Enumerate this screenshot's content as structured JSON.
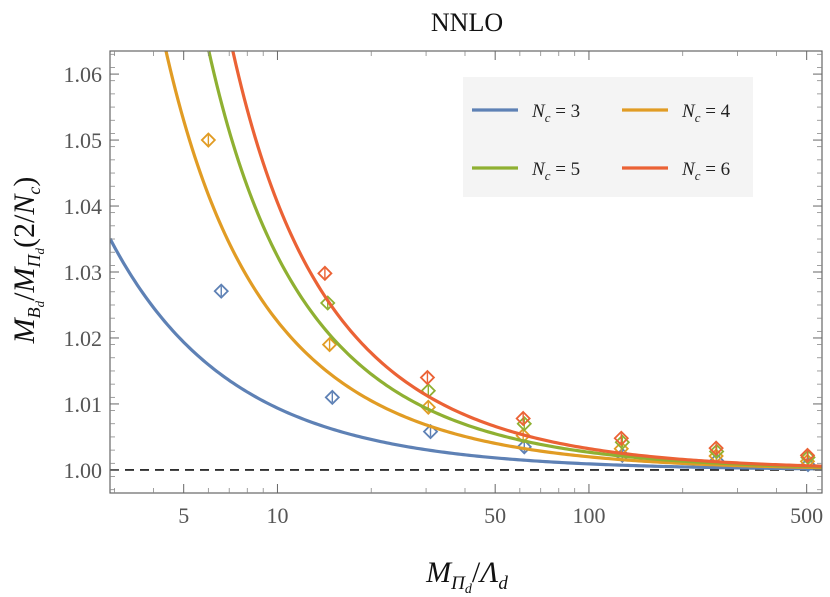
{
  "chart_data": {
    "type": "line",
    "title": "NNLO",
    "xlabel": "M_{Π_d}/Λ_d",
    "ylabel": "M_{B_d}/M_{Π_d}(2/N_c)",
    "xscale": "log",
    "xlim": [
      2.9,
      560
    ],
    "ylim": [
      0.9965,
      1.0635
    ],
    "x_ticks": [
      5,
      10,
      50,
      100,
      500
    ],
    "x_tick_labels": [
      "5",
      "10",
      "50",
      "100",
      "500"
    ],
    "y_ticks": [
      1.0,
      1.01,
      1.02,
      1.03,
      1.04,
      1.05,
      1.06
    ],
    "y_tick_labels": [
      "1.00",
      "1.01",
      "1.02",
      "1.03",
      "1.04",
      "1.05",
      "1.06"
    ],
    "reference_line": {
      "y": 1.0,
      "style": "dashed"
    },
    "legend_position": "top-right",
    "series": [
      {
        "name": "N_c = 3",
        "legend_lhs": "N",
        "legend_sub": "c",
        "legend_rhs": " = 3",
        "color": "#5e81b5",
        "fit": {
          "a": 0.0908,
          "b": 0.31
        },
        "points": [
          [
            6.6,
            1.0271
          ],
          [
            15.0,
            1.011
          ],
          [
            31.0,
            1.0058
          ],
          [
            62.0,
            1.0035
          ],
          [
            128.0,
            1.0022
          ],
          [
            257.0,
            1.0014
          ],
          [
            505.0,
            1.0008
          ]
        ]
      },
      {
        "name": "N_c = 4",
        "legend_lhs": "N",
        "legend_sub": "c",
        "legend_rhs": " = 4",
        "color": "#e19c24",
        "fit": {
          "a": 0.196,
          "b": 1.3
        },
        "points": [
          [
            6.0,
            1.05
          ],
          [
            14.7,
            1.019
          ],
          [
            30.5,
            1.0095
          ],
          [
            61.5,
            1.0052
          ],
          [
            127.0,
            1.0032
          ],
          [
            256.0,
            1.0021
          ],
          [
            503.0,
            1.0013
          ]
        ]
      },
      {
        "name": "N_c = 5",
        "legend_lhs": "N",
        "legend_sub": "c",
        "legend_rhs": " = 5",
        "color": "#8fb032",
        "fit": {
          "a": 0.263,
          "b": 1.88
        },
        "points": [
          [
            14.5,
            1.0253
          ],
          [
            30.5,
            1.012
          ],
          [
            62.0,
            1.007
          ],
          [
            128.0,
            1.0042
          ],
          [
            257.0,
            1.0028
          ],
          [
            505.0,
            1.0019
          ]
        ]
      },
      {
        "name": "N_c = 6",
        "legend_lhs": "N",
        "legend_sub": "c",
        "legend_rhs": " = 6",
        "color": "#eb6235",
        "fit": {
          "a": 0.315,
          "b": 2.23
        },
        "points": [
          [
            14.2,
            1.0298
          ],
          [
            30.3,
            1.014
          ],
          [
            61.5,
            1.0078
          ],
          [
            127.0,
            1.0048
          ],
          [
            256.0,
            1.0033
          ],
          [
            503.0,
            1.0022
          ]
        ]
      }
    ]
  }
}
